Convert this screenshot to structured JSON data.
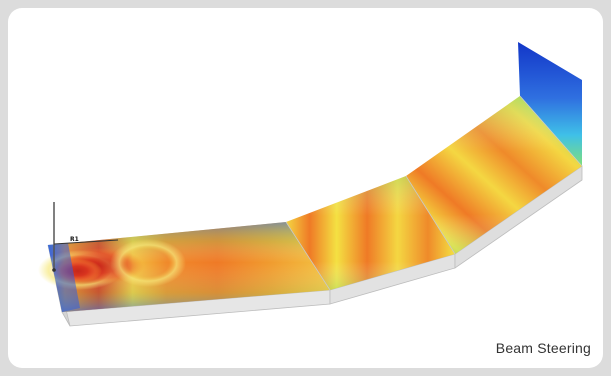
{
  "caption": "Beam Steering",
  "marker_label": "R1",
  "colors": {
    "hot": "#d8341e",
    "warm": "#f08a2a",
    "mid": "#f4e142",
    "cool": "#7fe07a",
    "cold": "#2f7fe8",
    "deep": "#1236c8",
    "slab_side": "#e6e6e6",
    "edge": "#b8b8b8"
  }
}
